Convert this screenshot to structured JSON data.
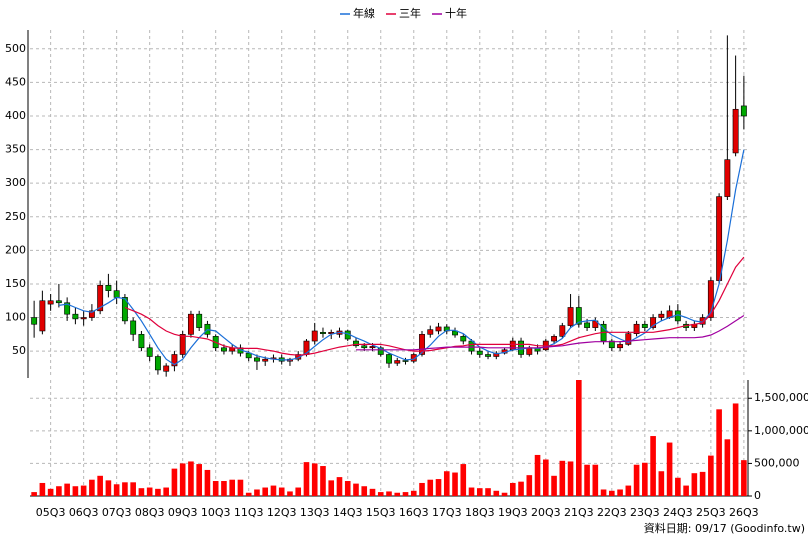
{
  "chart_data": [
    {
      "type": "candlestick",
      "legend_position": "top",
      "ylim": [
        10,
        528
      ],
      "yticks": [
        50,
        100,
        150,
        200,
        250,
        300,
        350,
        400,
        450,
        500
      ],
      "grid": true,
      "up_color": "#e00000",
      "down_color": "#00a800",
      "open": [
        100,
        80,
        120,
        125,
        122,
        105,
        98,
        100,
        110,
        148,
        140,
        130,
        95,
        75,
        55,
        42,
        20,
        28,
        45,
        75,
        105,
        90,
        72,
        55,
        50,
        55,
        47,
        40,
        35,
        38,
        40,
        35,
        38,
        45,
        65,
        78,
        76,
        75,
        80,
        65,
        58,
        55,
        55,
        45,
        32,
        36,
        35,
        45,
        75,
        80,
        86,
        80,
        72,
        65,
        50,
        45,
        42,
        47,
        52,
        65,
        45,
        55,
        52,
        65,
        72,
        88,
        115,
        92,
        85,
        90,
        65,
        55,
        60,
        76,
        90,
        85,
        100,
        100,
        110,
        90,
        85,
        90,
        100,
        155,
        280,
        345,
        415
      ],
      "high": [
        125,
        140,
        135,
        150,
        130,
        115,
        110,
        120,
        155,
        165,
        155,
        135,
        100,
        80,
        60,
        45,
        32,
        50,
        80,
        110,
        110,
        95,
        75,
        60,
        60,
        60,
        50,
        45,
        42,
        45,
        45,
        40,
        50,
        68,
        92,
        85,
        82,
        85,
        82,
        70,
        62,
        62,
        58,
        48,
        40,
        40,
        48,
        80,
        88,
        92,
        90,
        85,
        75,
        68,
        55,
        50,
        50,
        55,
        70,
        70,
        58,
        60,
        68,
        75,
        92,
        135,
        132,
        98,
        100,
        95,
        68,
        65,
        80,
        95,
        95,
        105,
        110,
        118,
        120,
        95,
        95,
        105,
        160,
        285,
        520,
        490,
        460
      ],
      "low": [
        70,
        75,
        110,
        115,
        95,
        90,
        88,
        95,
        105,
        130,
        120,
        90,
        65,
        50,
        35,
        15,
        12,
        20,
        40,
        70,
        80,
        70,
        50,
        45,
        45,
        42,
        35,
        22,
        28,
        33,
        30,
        28,
        35,
        42,
        60,
        70,
        68,
        70,
        65,
        55,
        50,
        50,
        42,
        25,
        28,
        30,
        32,
        42,
        70,
        75,
        75,
        70,
        60,
        45,
        40,
        38,
        38,
        45,
        50,
        40,
        42,
        45,
        50,
        60,
        70,
        85,
        85,
        80,
        80,
        60,
        50,
        50,
        58,
        72,
        80,
        82,
        95,
        98,
        90,
        80,
        80,
        85,
        95,
        150,
        275,
        340,
        380
      ],
      "close": [
        90,
        125,
        125,
        122,
        105,
        98,
        100,
        110,
        148,
        140,
        130,
        95,
        75,
        55,
        42,
        22,
        28,
        45,
        75,
        105,
        85,
        75,
        55,
        50,
        55,
        47,
        40,
        35,
        38,
        40,
        35,
        38,
        45,
        65,
        80,
        76,
        78,
        80,
        68,
        58,
        55,
        57,
        45,
        32,
        36,
        35,
        45,
        75,
        82,
        86,
        80,
        74,
        65,
        50,
        45,
        42,
        47,
        52,
        65,
        45,
        55,
        50,
        65,
        72,
        88,
        115,
        90,
        85,
        95,
        65,
        55,
        60,
        76,
        90,
        85,
        100,
        105,
        110,
        95,
        85,
        90,
        100,
        155,
        280,
        335,
        410,
        400
      ],
      "series": [
        {
          "name": "年線",
          "color": "#1a6fd8",
          "values": [
            null,
            null,
            null,
            118,
            120,
            115,
            110,
            108,
            115,
            122,
            130,
            128,
            112,
            95,
            75,
            55,
            38,
            30,
            38,
            55,
            70,
            82,
            80,
            70,
            60,
            52,
            48,
            43,
            40,
            38,
            37,
            37,
            40,
            47,
            57,
            67,
            75,
            78,
            76,
            70,
            65,
            59,
            54,
            47,
            42,
            37,
            38,
            48,
            59,
            72,
            81,
            81,
            76,
            66,
            56,
            50,
            46,
            48,
            52,
            53,
            55,
            54,
            56,
            61,
            69,
            85,
            93,
            95,
            96,
            84,
            74,
            68,
            63,
            70,
            77,
            88,
            95,
            100,
            104,
            100,
            95,
            93,
            108,
            150,
            215,
            290,
            350
          ]
        },
        {
          "name": "三年",
          "color": "#e0003c",
          "values": [
            null,
            null,
            null,
            null,
            null,
            null,
            null,
            null,
            null,
            null,
            null,
            115,
            110,
            105,
            98,
            88,
            80,
            75,
            72,
            72,
            70,
            68,
            63,
            58,
            55,
            54,
            54,
            54,
            52,
            50,
            47,
            45,
            44,
            45,
            47,
            50,
            53,
            56,
            58,
            60,
            60,
            60,
            60,
            58,
            55,
            52,
            50,
            50,
            51,
            53,
            55,
            57,
            58,
            60,
            60,
            60,
            60,
            60,
            60,
            60,
            60,
            58,
            58,
            58,
            60,
            65,
            70,
            73,
            76,
            78,
            78,
            78,
            78,
            78,
            78,
            78,
            80,
            82,
            85,
            88,
            90,
            92,
            105,
            125,
            150,
            175,
            190
          ]
        },
        {
          "name": "十年",
          "color": "#a000a0",
          "values": [
            null,
            null,
            null,
            null,
            null,
            null,
            null,
            null,
            null,
            null,
            null,
            null,
            null,
            null,
            null,
            null,
            null,
            null,
            null,
            null,
            null,
            null,
            null,
            null,
            null,
            null,
            null,
            null,
            null,
            null,
            null,
            null,
            null,
            null,
            null,
            null,
            null,
            null,
            null,
            52,
            52,
            52,
            52,
            52,
            52,
            52,
            52,
            53,
            54,
            55,
            56,
            56,
            56,
            56,
            56,
            55,
            55,
            55,
            55,
            55,
            55,
            55,
            56,
            57,
            58,
            60,
            62,
            63,
            64,
            64,
            64,
            64,
            65,
            66,
            67,
            68,
            69,
            70,
            70,
            70,
            70,
            71,
            74,
            80,
            87,
            95,
            103
          ]
        }
      ]
    },
    {
      "type": "bar",
      "color": "#ff0000",
      "ylim": [
        0,
        1780000
      ],
      "yticks": [
        {
          "value": 0,
          "label": "0"
        },
        {
          "value": 500000,
          "label": "500,000"
        },
        {
          "value": 1000000,
          "label": "1,000,000"
        },
        {
          "value": 1500000,
          "label": "1,500,000"
        }
      ],
      "grid": true,
      "categories": [
        null,
        null,
        "05Q3",
        null,
        null,
        null,
        "06Q3",
        null,
        null,
        null,
        "07Q3",
        null,
        null,
        null,
        "08Q3",
        null,
        null,
        null,
        "09Q3",
        null,
        null,
        null,
        "10Q3",
        null,
        null,
        null,
        "11Q3",
        null,
        null,
        null,
        "12Q3",
        null,
        null,
        null,
        "13Q3",
        null,
        null,
        null,
        "14Q3",
        null,
        null,
        null,
        "15Q3",
        null,
        null,
        null,
        "16Q3",
        null,
        null,
        null,
        "17Q3",
        null,
        null,
        null,
        "18Q3",
        null,
        null,
        null,
        "19Q3",
        null,
        null,
        null,
        "20Q3",
        null,
        null,
        null,
        "21Q3",
        null,
        null,
        null,
        "22Q3",
        null,
        null,
        null,
        "23Q3",
        null,
        null,
        null,
        "24Q3",
        null,
        null,
        null,
        "25Q3",
        null,
        null,
        null,
        "26Q3"
      ],
      "values": [
        60000,
        200000,
        110000,
        150000,
        190000,
        150000,
        160000,
        250000,
        310000,
        240000,
        180000,
        210000,
        210000,
        120000,
        130000,
        110000,
        130000,
        420000,
        500000,
        530000,
        490000,
        400000,
        230000,
        230000,
        250000,
        250000,
        50000,
        100000,
        130000,
        160000,
        130000,
        70000,
        130000,
        520000,
        500000,
        460000,
        240000,
        290000,
        230000,
        190000,
        150000,
        110000,
        60000,
        70000,
        50000,
        60000,
        80000,
        200000,
        250000,
        260000,
        380000,
        360000,
        490000,
        130000,
        120000,
        120000,
        80000,
        50000,
        200000,
        220000,
        320000,
        630000,
        560000,
        310000,
        540000,
        530000,
        1780000,
        480000,
        480000,
        100000,
        80000,
        100000,
        160000,
        480000,
        510000,
        920000,
        380000,
        820000,
        280000,
        160000,
        350000,
        370000,
        620000,
        1330000,
        870000,
        1420000,
        550000
      ],
      "source_note": "資料日期: 09/17 (Goodinfo.tw)"
    }
  ]
}
